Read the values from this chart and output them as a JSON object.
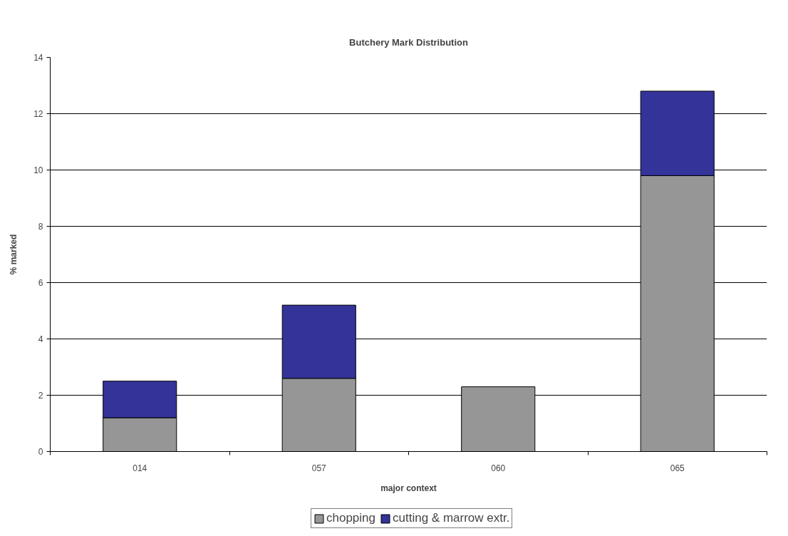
{
  "chart_data": {
    "type": "bar",
    "title": "Butchery Mark Distribution",
    "xlabel": "major context",
    "ylabel": "% marked",
    "categories": [
      "014",
      "057",
      "060",
      "065"
    ],
    "stacked": true,
    "series": [
      {
        "name": "chopping",
        "color": "#969696",
        "values": [
          1.2,
          2.6,
          2.3,
          9.8
        ]
      },
      {
        "name": "cutting & marrow extr.",
        "color": "#333399",
        "values": [
          1.3,
          2.6,
          null,
          3.0
        ]
      }
    ],
    "ylim": [
      0,
      14
    ],
    "yticks": [
      0,
      2,
      4,
      6,
      8,
      10,
      12,
      14
    ],
    "grid": "y",
    "legend": "bottom"
  }
}
